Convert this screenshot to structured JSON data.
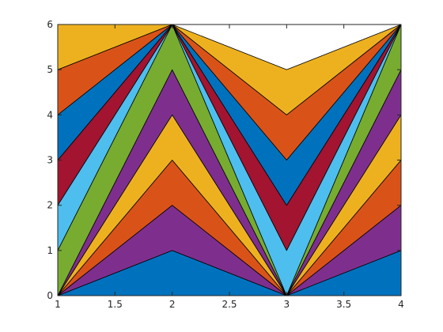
{
  "chart_data": {
    "type": "area",
    "stacked": true,
    "x": [
      1,
      2,
      3,
      4
    ],
    "xlim": [
      1,
      4
    ],
    "ylim": [
      0,
      6
    ],
    "xticks": [
      "1",
      "1.5",
      "2",
      "2.5",
      "3",
      "3.5",
      "4"
    ],
    "yticks": [
      "0",
      "1",
      "2",
      "3",
      "4",
      "5",
      "6"
    ],
    "grid": false,
    "legend": false,
    "series": [
      {
        "values": [
          0,
          1,
          0,
          1
        ],
        "color": "#0072BD"
      },
      {
        "values": [
          0,
          1,
          0,
          1
        ],
        "color": "#7E2F8E"
      },
      {
        "values": [
          0,
          1,
          0,
          1
        ],
        "color": "#D95319"
      },
      {
        "values": [
          0,
          1,
          0,
          1
        ],
        "color": "#EDB120"
      },
      {
        "values": [
          0,
          1,
          0,
          1
        ],
        "color": "#7E2F8E"
      },
      {
        "values": [
          1,
          1,
          0,
          1
        ],
        "color": "#77AC30"
      },
      {
        "values": [
          1,
          0,
          1,
          0
        ],
        "color": "#4DBEEE"
      },
      {
        "values": [
          1,
          0,
          1,
          0
        ],
        "color": "#A2142F"
      },
      {
        "values": [
          1,
          0,
          1,
          0
        ],
        "color": "#0072BD"
      },
      {
        "values": [
          1,
          0,
          1,
          0
        ],
        "color": "#D95319"
      },
      {
        "values": [
          1,
          0,
          1,
          0
        ],
        "color": "#EDB120"
      }
    ]
  }
}
